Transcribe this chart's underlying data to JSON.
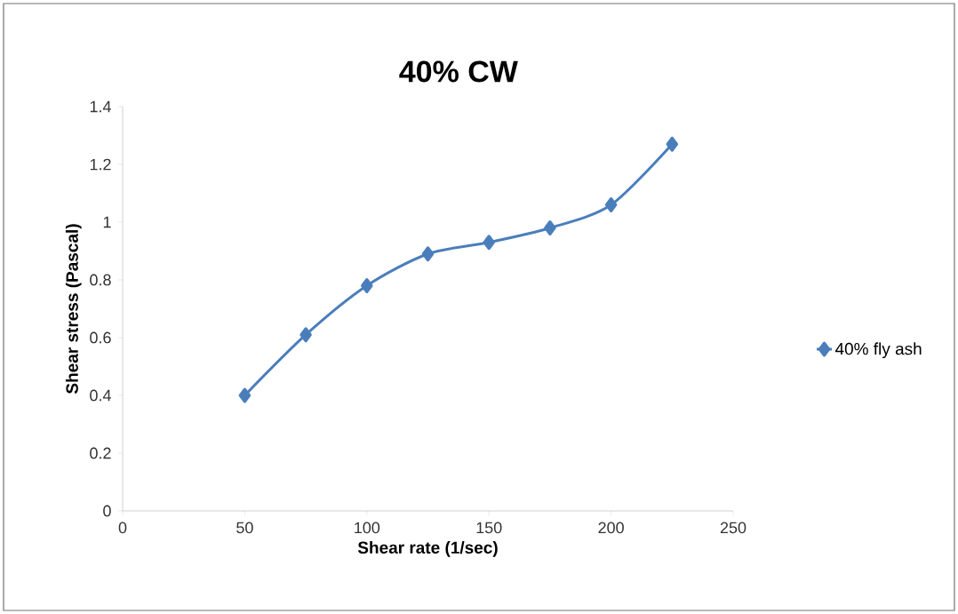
{
  "chart_data": {
    "type": "line",
    "title": "40% CW",
    "xlabel": "Shear rate (1/sec)",
    "ylabel": "Shear stress (Pascal)",
    "x": [
      50,
      75,
      100,
      125,
      150,
      175,
      200,
      225
    ],
    "series": [
      {
        "name": "40% fly ash",
        "color": "#4a7ebb",
        "values": [
          0.4,
          0.61,
          0.78,
          0.89,
          0.93,
          0.98,
          1.06,
          1.27
        ]
      }
    ],
    "xlim": [
      0,
      250
    ],
    "ylim": [
      0,
      1.4
    ],
    "xticks": [
      0,
      50,
      100,
      150,
      200,
      250
    ],
    "yticks": [
      0,
      0.2,
      0.4,
      0.6,
      0.8,
      1,
      1.2,
      1.4
    ],
    "marker": "diamond",
    "line_style": "solid",
    "legend": "right",
    "grid": false
  }
}
